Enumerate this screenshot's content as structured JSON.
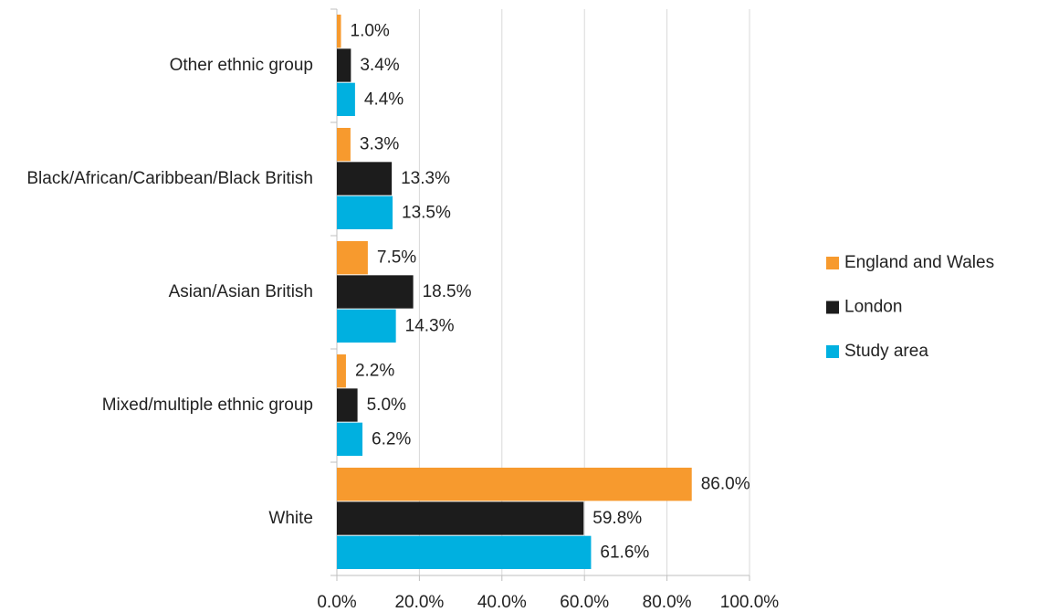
{
  "chart_data": {
    "type": "barh",
    "categories": [
      "Other ethnic group",
      "Black/African/Caribbean/Black British",
      "Asian/Asian British",
      "Mixed/multiple ethnic group",
      "White"
    ],
    "series": [
      {
        "name": "England and Wales",
        "color": "#f79a2e",
        "values": [
          1.0,
          3.3,
          7.5,
          2.2,
          86.0
        ],
        "value_labels": [
          "1.0%",
          "3.3%",
          "7.5%",
          "2.2%",
          "86.0%"
        ]
      },
      {
        "name": "London",
        "color": "#1c1c1c",
        "values": [
          3.4,
          13.3,
          18.5,
          5.0,
          59.8
        ],
        "value_labels": [
          "3.4%",
          "13.3%",
          "18.5%",
          "5.0%",
          "59.8%"
        ]
      },
      {
        "name": "Study area",
        "color": "#00b0e0",
        "values": [
          4.4,
          13.5,
          14.3,
          6.2,
          61.6
        ],
        "value_labels": [
          "4.4%",
          "13.5%",
          "14.3%",
          "6.2%",
          "61.6%"
        ]
      }
    ],
    "xlim": [
      0,
      100
    ],
    "xticks": [
      {
        "value": 0,
        "label": "0.0%"
      },
      {
        "value": 20,
        "label": "20.0%"
      },
      {
        "value": 40,
        "label": "40.0%"
      },
      {
        "value": 60,
        "label": "60.0%"
      },
      {
        "value": 80,
        "label": "80.0%"
      },
      {
        "value": 100,
        "label": "100.0%"
      }
    ],
    "grid": true,
    "legend": "right"
  }
}
